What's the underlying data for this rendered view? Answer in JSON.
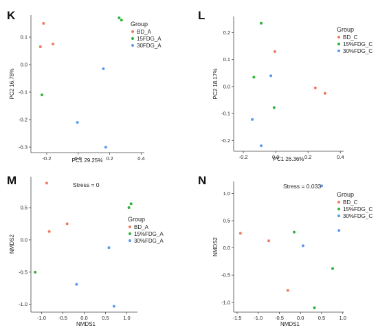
{
  "chart_data": [
    {
      "panel": "K",
      "type": "scatter",
      "xlabel": "PC1 29.25%",
      "ylabel": "PC2 16.78%",
      "xlim": [
        -0.3,
        0.42
      ],
      "ylim": [
        -0.32,
        0.18
      ],
      "xticks": [
        "-0.2",
        "0.0",
        "0.2",
        "0.4"
      ],
      "xtick_values": [
        -0.2,
        0.0,
        0.2,
        0.4
      ],
      "yticks": [
        "-0.3",
        "-0.2",
        "-0.1",
        "0.0",
        "0.1"
      ],
      "ytick_values": [
        -0.3,
        -0.2,
        -0.1,
        0.0,
        0.1
      ],
      "legend_title": "Group",
      "legend_position": "top-right",
      "series": [
        {
          "name": "BD_A",
          "color": "#f07b5e",
          "points": [
            [
              -0.22,
              0.15
            ],
            [
              -0.24,
              0.065
            ],
            [
              -0.16,
              0.075
            ]
          ]
        },
        {
          "name": "15FDG_A",
          "color": "#2eb33a",
          "points": [
            [
              0.26,
              0.17
            ],
            [
              0.275,
              0.162
            ],
            [
              -0.23,
              -0.11
            ]
          ]
        },
        {
          "name": "30FDG_A",
          "color": "#5b9bf0",
          "points": [
            [
              0.16,
              -0.015
            ],
            [
              -0.005,
              -0.21
            ],
            [
              0.175,
              -0.3
            ]
          ]
        }
      ]
    },
    {
      "panel": "L",
      "type": "scatter",
      "xlabel": "PC1 26.36%",
      "ylabel": "PC2 18.17%",
      "xlim": [
        -0.26,
        0.42
      ],
      "ylim": [
        -0.24,
        0.26
      ],
      "xticks": [
        "-0.2",
        "0.0",
        "0.2",
        "0.4"
      ],
      "xtick_values": [
        -0.2,
        0.0,
        0.2,
        0.4
      ],
      "yticks": [
        "-0.2",
        "-0.1",
        "0.0",
        "0.1",
        "0.2"
      ],
      "ytick_values": [
        -0.2,
        -0.1,
        0.0,
        0.1,
        0.2
      ],
      "legend_title": "Group",
      "legend_position": "top-right",
      "series": [
        {
          "name": "BD_C",
          "color": "#f07b5e",
          "points": [
            [
              -0.005,
              0.13
            ],
            [
              0.245,
              -0.005
            ],
            [
              0.305,
              -0.025
            ]
          ]
        },
        {
          "name": "15%FDG_C",
          "color": "#2eb33a",
          "points": [
            [
              -0.09,
              0.235
            ],
            [
              -0.135,
              0.035
            ],
            [
              -0.01,
              -0.078
            ]
          ]
        },
        {
          "name": "30%FDG_C",
          "color": "#5b9bf0",
          "points": [
            [
              -0.03,
              0.04
            ],
            [
              -0.145,
              -0.122
            ],
            [
              -0.09,
              -0.22
            ]
          ]
        }
      ]
    },
    {
      "panel": "M",
      "type": "scatter",
      "xlabel": "NMDS1",
      "ylabel": "NMDS2",
      "annotation": "Stress = 0",
      "xlim": [
        -1.25,
        1.25
      ],
      "ylim": [
        -1.12,
        0.98
      ],
      "xticks": [
        "-1.0",
        "-0.5",
        "0.0",
        "0.5",
        "1.0"
      ],
      "xtick_values": [
        -1.0,
        -0.5,
        0.0,
        0.5,
        1.0
      ],
      "yticks": [
        "-1.0",
        "-0.5",
        "0.0",
        "0.5"
      ],
      "ytick_values": [
        -1.0,
        -0.5,
        0.0,
        0.5
      ],
      "legend_title": "Group",
      "legend_position": "right",
      "series": [
        {
          "name": "BD_A",
          "color": "#f07b5e",
          "points": [
            [
              -0.88,
              0.88
            ],
            [
              -0.82,
              0.13
            ],
            [
              -0.4,
              0.25
            ]
          ]
        },
        {
          "name": "15%FDG_A",
          "color": "#2eb33a",
          "points": [
            [
              1.05,
              0.5
            ],
            [
              1.1,
              0.56
            ],
            [
              -1.15,
              -0.5
            ]
          ]
        },
        {
          "name": "30%FDG_A",
          "color": "#5b9bf0",
          "points": [
            [
              0.58,
              -0.12
            ],
            [
              -0.18,
              -0.69
            ],
            [
              0.7,
              -1.03
            ]
          ]
        }
      ]
    },
    {
      "panel": "N",
      "type": "scatter",
      "xlabel": "NMDS1",
      "ylabel": "NMDS2",
      "annotation": "Stress = 0.033",
      "xlim": [
        -1.58,
        1.02
      ],
      "ylim": [
        -1.18,
        1.22
      ],
      "xticks": [
        "-1.5",
        "-1.0",
        "-0.5",
        "0.0",
        "0.5",
        "1.0"
      ],
      "xtick_values": [
        -1.5,
        -1.0,
        -0.5,
        0.0,
        0.5,
        1.0
      ],
      "yticks": [
        "-1.0",
        "-0.5",
        "0.0",
        "0.5",
        "1.0"
      ],
      "ytick_values": [
        -1.0,
        -0.5,
        0.0,
        0.5,
        1.0
      ],
      "legend_title": "Group",
      "legend_position": "right",
      "series": [
        {
          "name": "BD_C",
          "color": "#f07b5e",
          "points": [
            [
              -1.42,
              0.27
            ],
            [
              -0.75,
              0.13
            ],
            [
              -0.3,
              -0.78
            ]
          ]
        },
        {
          "name": "15%FDG_C",
          "color": "#2eb33a",
          "points": [
            [
              -0.15,
              0.29
            ],
            [
              0.76,
              -0.38
            ],
            [
              0.33,
              -1.1
            ]
          ]
        },
        {
          "name": "30%FDG_C",
          "color": "#5b9bf0",
          "points": [
            [
              0.5,
              1.14
            ],
            [
              0.06,
              0.04
            ],
            [
              0.91,
              0.32
            ]
          ]
        }
      ]
    }
  ]
}
